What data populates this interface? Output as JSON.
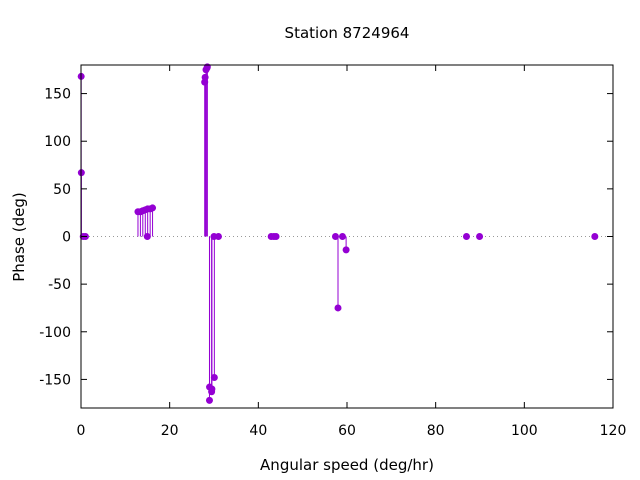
{
  "chart_data": {
    "type": "scatter",
    "style": "impulses-with-points",
    "title": "Station 8724964",
    "xlabel": "Angular speed (deg/hr)",
    "ylabel": "Phase (deg)",
    "xlim": [
      0,
      120
    ],
    "ylim": [
      -180,
      180
    ],
    "xticks": [
      "0",
      "20",
      "40",
      "60",
      "80",
      "100",
      "120"
    ],
    "yticks": [
      "-150",
      "-100",
      "-50",
      "0",
      "50",
      "100",
      "150"
    ],
    "grid": false,
    "zero_line": "dotted",
    "legend": "none",
    "series": [
      {
        "color": "#9400d3",
        "x": [
          0.04,
          0.08,
          0.5,
          1.0,
          12.85,
          13.4,
          13.94,
          14.5,
          14.96,
          15.04,
          15.6,
          16.14,
          27.9,
          28.0,
          28.2,
          28.44,
          28.5,
          28.98,
          29.0,
          29.46,
          29.53,
          30.0,
          30.08,
          31.0,
          42.9,
          43.5,
          44.0,
          57.4,
          57.97,
          58.98,
          59.8,
          86.95,
          89.9,
          115.9
        ],
        "y": [
          168,
          67,
          0,
          0,
          26,
          26,
          27,
          28,
          0,
          29,
          29,
          30,
          162,
          167,
          175,
          177,
          178,
          -172,
          -158,
          -163,
          -160,
          0,
          -148,
          0,
          0,
          0,
          0,
          0,
          -75,
          0,
          -14,
          0,
          0,
          0
        ]
      }
    ]
  }
}
